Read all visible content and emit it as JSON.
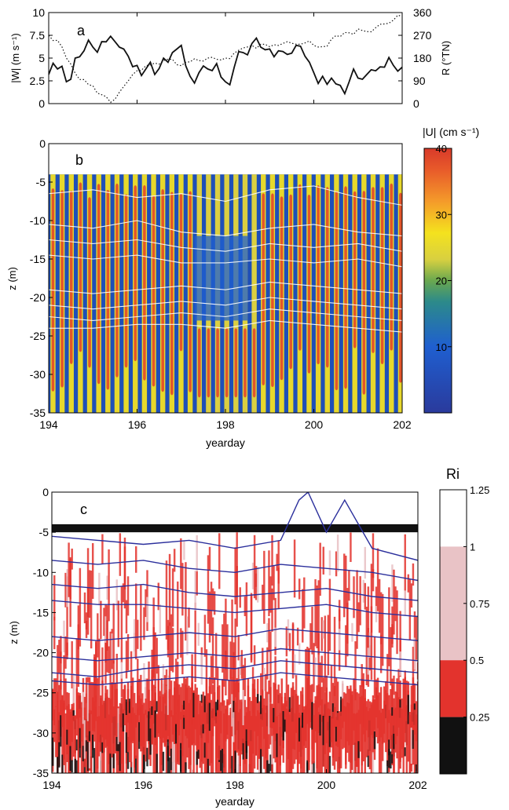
{
  "chart_data": [
    {
      "panel": "a",
      "type": "line",
      "panel_label": "a",
      "xlim": [
        194,
        202
      ],
      "y_left": {
        "label": "|W| (m s⁻¹)",
        "lim": [
          0,
          10
        ],
        "ticks": [
          "0",
          "2.5",
          "5",
          "7.5",
          "10"
        ],
        "tick_values": [
          0,
          2.5,
          5,
          7.5,
          10
        ]
      },
      "y_right": {
        "label": "R (°TN)",
        "lim": [
          0,
          360
        ],
        "ticks": [
          "0",
          "90",
          "180",
          "270",
          "360"
        ],
        "tick_values": [
          0,
          90,
          180,
          270,
          360
        ]
      },
      "series": [
        {
          "style": "solid",
          "axis": "left",
          "x": [
            194,
            194.2,
            194.4,
            194.6,
            194.8,
            195,
            195.2,
            195.4,
            195.6,
            195.8,
            196,
            196.2,
            196.4,
            196.6,
            196.8,
            197,
            197.2,
            197.4,
            197.6,
            197.8,
            198,
            198.2,
            198.4,
            198.6,
            198.8,
            199,
            199.2,
            199.4,
            199.6,
            199.8,
            200,
            200.2,
            200.4,
            200.6,
            200.8,
            201,
            201.2,
            201.4,
            201.6,
            201.8,
            202
          ],
          "values": [
            3.2,
            3.8,
            2.4,
            5.0,
            5.8,
            6.2,
            6.8,
            7.4,
            6.2,
            5.2,
            4.2,
            3.8,
            3.2,
            5.0,
            5.6,
            6.4,
            3.0,
            3.4,
            3.8,
            4.4,
            2.4,
            4.0,
            5.6,
            6.6,
            6.2,
            6.0,
            5.8,
            5.4,
            6.4,
            5.2,
            3.4,
            3.0,
            2.8,
            2.0,
            2.4,
            2.8,
            3.2,
            3.6,
            4.0,
            4.2,
            4.0
          ]
        },
        {
          "style": "dotted",
          "axis": "right",
          "x": [
            194,
            194.2,
            194.4,
            194.6,
            194.8,
            195,
            195.2,
            195.4,
            195.6,
            195.8,
            196,
            196.2,
            196.4,
            196.6,
            196.8,
            197,
            197.2,
            197.4,
            197.6,
            197.8,
            198,
            198.2,
            198.4,
            198.6,
            198.8,
            199,
            199.2,
            199.4,
            199.6,
            199.8,
            200,
            200.2,
            200.4,
            200.6,
            200.8,
            201,
            201.2,
            201.4,
            201.6,
            201.8,
            202
          ],
          "values": [
            270,
            250,
            180,
            120,
            95,
            70,
            35,
            5,
            45,
            90,
            130,
            150,
            160,
            170,
            175,
            150,
            165,
            170,
            180,
            175,
            180,
            200,
            220,
            230,
            235,
            225,
            230,
            245,
            235,
            240,
            230,
            225,
            255,
            265,
            280,
            295,
            285,
            300,
            315,
            330,
            345
          ]
        }
      ]
    },
    {
      "panel": "b",
      "type": "heatmap",
      "panel_label": "b",
      "xlabel": "yearday",
      "ylabel": "z (m)",
      "xlim": [
        194,
        202
      ],
      "ylim": [
        -35,
        0
      ],
      "x_ticks": [
        "194",
        "196",
        "198",
        "200",
        "202"
      ],
      "x_tick_values": [
        194,
        196,
        198,
        200,
        202
      ],
      "y_ticks": [
        "0",
        "-5",
        "-10",
        "-15",
        "-20",
        "-25",
        "-30",
        "-35"
      ],
      "y_tick_values": [
        0,
        -5,
        -10,
        -15,
        -20,
        -25,
        -30,
        -35
      ],
      "data_top_z": -4,
      "stripe_period_days": 0.207,
      "colorbar": {
        "label": "|U| (cm s⁻¹)",
        "lim": [
          0,
          40
        ],
        "ticks": [
          "10",
          "20",
          "30",
          "40"
        ],
        "tick_values": [
          10,
          20,
          30,
          40
        ]
      },
      "contours": [
        {
          "x": [
            194,
            195,
            196,
            197,
            198,
            199,
            200,
            201,
            202
          ],
          "z": [
            -6.5,
            -6.0,
            -7.0,
            -6.5,
            -7.5,
            -6.0,
            -5.5,
            -7.0,
            -8.0
          ]
        },
        {
          "x": [
            194,
            195,
            196,
            197,
            198,
            199,
            200,
            201,
            202
          ],
          "z": [
            -10.5,
            -11.0,
            -10.0,
            -11.5,
            -12.0,
            -11.0,
            -10.5,
            -11.5,
            -12.0
          ]
        },
        {
          "x": [
            194,
            195,
            196,
            197,
            198,
            199,
            200,
            201,
            202
          ],
          "z": [
            -12.5,
            -13.0,
            -12.5,
            -13.5,
            -14.0,
            -13.0,
            -13.5,
            -13.0,
            -14.0
          ]
        },
        {
          "x": [
            194,
            195,
            196,
            197,
            198,
            199,
            200,
            201,
            202
          ],
          "z": [
            -14.5,
            -15.0,
            -14.5,
            -15.5,
            -15.5,
            -15.0,
            -15.5,
            -15.0,
            -16.0
          ]
        },
        {
          "x": [
            194,
            195,
            196,
            197,
            198,
            199,
            200,
            201,
            202
          ],
          "z": [
            -19.0,
            -19.5,
            -19.0,
            -18.5,
            -19.0,
            -18.0,
            -18.5,
            -19.0,
            -19.5
          ]
        },
        {
          "x": [
            194,
            195,
            196,
            197,
            198,
            199,
            200,
            201,
            202
          ],
          "z": [
            -21.0,
            -21.5,
            -21.0,
            -20.5,
            -21.0,
            -20.0,
            -20.5,
            -21.0,
            -21.5
          ]
        },
        {
          "x": [
            194,
            195,
            196,
            197,
            198,
            199,
            200,
            201,
            202
          ],
          "z": [
            -22.5,
            -23.0,
            -22.5,
            -22.0,
            -22.5,
            -21.5,
            -22.0,
            -22.5,
            -23.0
          ]
        },
        {
          "x": [
            194,
            195,
            196,
            197,
            198,
            199,
            200,
            201,
            202
          ],
          "z": [
            -24.0,
            -24.0,
            -23.5,
            -23.5,
            -24.0,
            -23.0,
            -23.5,
            -24.0,
            -24.5
          ]
        }
      ]
    },
    {
      "panel": "c",
      "type": "heatmap",
      "panel_label": "c",
      "xlabel": "yearday",
      "ylabel": "z (m)",
      "xlim": [
        194,
        202
      ],
      "ylim": [
        -35,
        0
      ],
      "x_ticks": [
        "194",
        "196",
        "198",
        "200",
        "202"
      ],
      "x_tick_values": [
        194,
        196,
        198,
        200,
        202
      ],
      "y_ticks": [
        "0",
        "-5",
        "-10",
        "-15",
        "-20",
        "-25",
        "-30",
        "-35"
      ],
      "y_tick_values": [
        0,
        -5,
        -10,
        -15,
        -20,
        -25,
        -30,
        -35
      ],
      "data_top_z": -4,
      "colorbar": {
        "label": "Ri",
        "ticks": [
          "1.25",
          "1",
          "0.75",
          "0.5",
          "0.25"
        ],
        "tick_values": [
          1.25,
          1,
          0.75,
          0.5,
          0.25
        ],
        "bands": [
          {
            "from": 1.0,
            "to": 1.25,
            "color": "#ffffff"
          },
          {
            "from": 0.5,
            "to": 1.0,
            "color": "#e9c3c6"
          },
          {
            "from": 0.25,
            "to": 0.5,
            "color": "#e3332d"
          },
          {
            "from": 0.0,
            "to": 0.25,
            "color": "#111111"
          }
        ]
      },
      "contours": [
        {
          "x": [
            194,
            195,
            196,
            197,
            198,
            199,
            199.4,
            199.6,
            200,
            200.4,
            201,
            202
          ],
          "z": [
            -5.5,
            -6.0,
            -6.5,
            -6.0,
            -7.0,
            -6.0,
            -1.0,
            0.0,
            -5.0,
            -1.0,
            -7.0,
            -8.5
          ]
        },
        {
          "x": [
            194,
            195,
            196,
            197,
            198,
            199,
            200,
            201,
            202
          ],
          "z": [
            -8.5,
            -9.0,
            -8.5,
            -9.5,
            -10.0,
            -9.0,
            -9.5,
            -10.0,
            -11.0
          ]
        },
        {
          "x": [
            194,
            195,
            196,
            197,
            198,
            199,
            200,
            201,
            202
          ],
          "z": [
            -11.5,
            -12.0,
            -11.5,
            -12.5,
            -13.0,
            -12.5,
            -12.0,
            -13.0,
            -13.5
          ]
        },
        {
          "x": [
            194,
            195,
            196,
            197,
            198,
            199,
            200,
            201,
            202
          ],
          "z": [
            -13.5,
            -14.0,
            -14.0,
            -14.5,
            -15.0,
            -14.5,
            -14.0,
            -15.0,
            -15.5
          ]
        },
        {
          "x": [
            194,
            195,
            196,
            197,
            198,
            199,
            200,
            201,
            202
          ],
          "z": [
            -18.0,
            -18.5,
            -18.0,
            -17.5,
            -18.0,
            -17.0,
            -17.5,
            -18.0,
            -18.5
          ]
        },
        {
          "x": [
            194,
            195,
            196,
            197,
            198,
            199,
            200,
            201,
            202
          ],
          "z": [
            -20.5,
            -21.0,
            -20.5,
            -20.0,
            -20.5,
            -19.5,
            -20.0,
            -20.5,
            -21.0
          ]
        },
        {
          "x": [
            194,
            195,
            196,
            197,
            198,
            199,
            200,
            201,
            202
          ],
          "z": [
            -22.5,
            -23.0,
            -22.0,
            -21.5,
            -22.0,
            -21.0,
            -21.5,
            -22.0,
            -22.5
          ]
        },
        {
          "x": [
            194,
            195,
            196,
            197,
            198,
            199,
            200,
            201,
            202
          ],
          "z": [
            -23.5,
            -24.0,
            -23.5,
            -23.0,
            -23.5,
            -22.5,
            -23.0,
            -23.5,
            -24.0
          ]
        }
      ]
    }
  ]
}
